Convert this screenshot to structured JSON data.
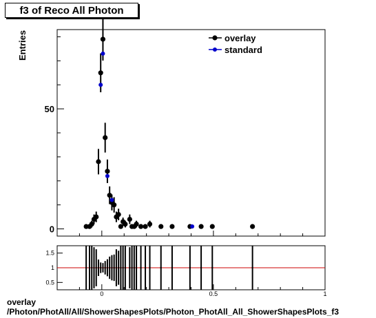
{
  "title": "f3 of Reco All Photon",
  "footer": {
    "line1": "overlay",
    "line2": "/Photon/PhotAll/All/ShowerShapesPlots/Photon_PhotAll_All_ShowerShapesPlots_f3"
  },
  "colors": {
    "overlay": "#000000",
    "standard": "#0000cc",
    "ratio_line": "#cc0000"
  },
  "chart_data": [
    {
      "type": "scatter",
      "ylabel": "Entries",
      "xlim": [
        -0.2,
        1.0
      ],
      "ylim": [
        -3,
        83
      ],
      "y_ticks": [
        0,
        50
      ],
      "x_ticks": [
        0,
        0.5,
        1
      ],
      "legend": {
        "placement": "top-right",
        "entries": [
          "overlay",
          "standard"
        ]
      },
      "series": [
        {
          "name": "overlay",
          "x": [
            -0.07,
            -0.055,
            -0.045,
            -0.035,
            -0.025,
            -0.015,
            -0.005,
            0.005,
            0.015,
            0.025,
            0.035,
            0.045,
            0.055,
            0.065,
            0.075,
            0.085,
            0.095,
            0.105,
            0.125,
            0.135,
            0.145,
            0.155,
            0.175,
            0.195,
            0.215,
            0.265,
            0.315,
            0.395,
            0.445,
            0.495,
            0.675
          ],
          "y": [
            1,
            1,
            2,
            4,
            5,
            28,
            65,
            79,
            38,
            24,
            14,
            11,
            10,
            5,
            6,
            1,
            3,
            2,
            4,
            1,
            1,
            2,
            1,
            1,
            2,
            1,
            1,
            1,
            1,
            1,
            1
          ],
          "yerr": [
            1,
            1,
            1.4,
            2,
            2.2,
            5.3,
            8.1,
            8.9,
            6.2,
            4.9,
            3.7,
            3.3,
            3.2,
            2.2,
            2.4,
            1,
            1.7,
            1.4,
            2,
            1,
            1,
            1.4,
            1,
            1,
            1.4,
            1,
            1,
            1,
            1,
            1,
            1
          ]
        },
        {
          "name": "standard",
          "x": [
            -0.005,
            0.005,
            0.025,
            0.045,
            0.405
          ],
          "y": [
            60,
            73,
            22,
            12,
            1
          ]
        }
      ]
    },
    {
      "type": "scatter",
      "xlim": [
        -0.2,
        1.0
      ],
      "ylim": [
        0.25,
        1.75
      ],
      "y_ticks": [
        0.5,
        1,
        1.5
      ],
      "x_ticks": [
        0,
        0.5,
        1
      ],
      "reference_line": 1,
      "series": [
        {
          "name": "ratio",
          "x": [
            -0.07,
            -0.055,
            -0.045,
            -0.035,
            -0.025,
            -0.015,
            -0.005,
            0.005,
            0.015,
            0.025,
            0.035,
            0.045,
            0.055,
            0.065,
            0.075,
            0.085,
            0.095,
            0.105,
            0.125,
            0.135,
            0.145,
            0.155,
            0.175,
            0.195,
            0.215,
            0.265,
            0.315,
            0.395,
            0.445,
            0.495,
            0.675
          ],
          "y": [
            1,
            1,
            1,
            1,
            1,
            1,
            1,
            1,
            1,
            1,
            1,
            1,
            1,
            1,
            1,
            1,
            1,
            1,
            1,
            1,
            1,
            1,
            1,
            1,
            1,
            1,
            1,
            1,
            1,
            1,
            1
          ],
          "yerr": [
            2,
            2,
            1.4,
            0.7,
            0.63,
            0.28,
            0.18,
            0.16,
            0.23,
            0.29,
            0.38,
            0.43,
            0.45,
            0.63,
            0.58,
            2,
            0.82,
            1.4,
            0.7,
            2,
            2,
            1.4,
            2,
            2,
            1.4,
            2,
            2,
            2,
            2,
            2,
            2
          ]
        }
      ]
    }
  ]
}
